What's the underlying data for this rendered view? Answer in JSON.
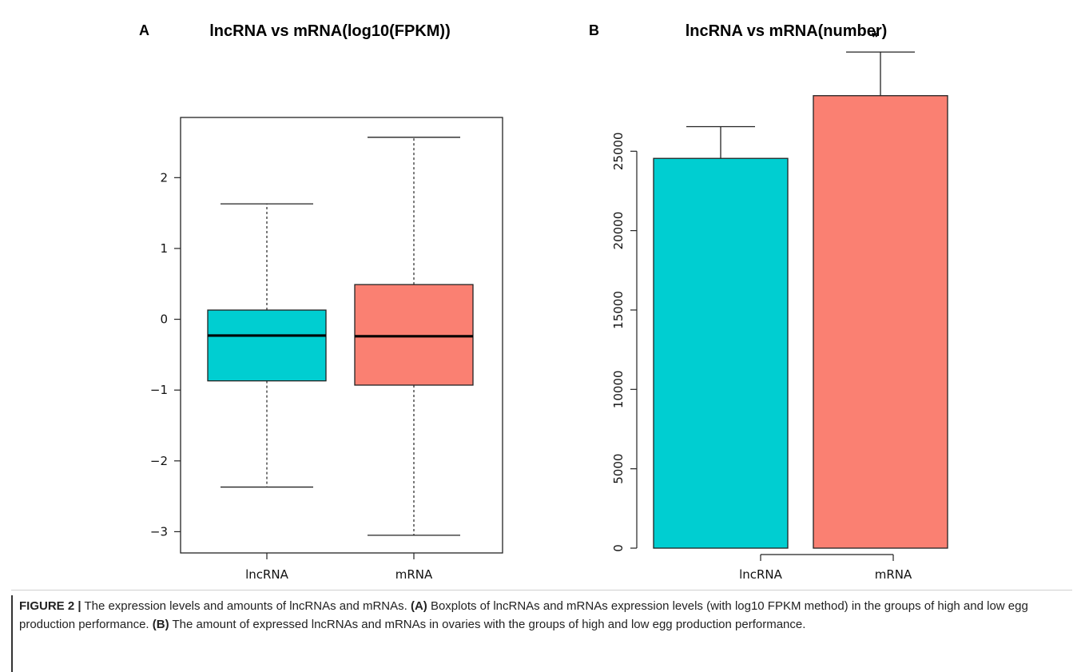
{
  "figure": {
    "caption": {
      "label": "FIGURE 2 |",
      "text": " The expression levels and amounts of lncRNAs and mRNAs. ",
      "a_label": "(A)",
      "a_text": " Boxplots of lncRNAs and mRNAs expression levels (with log10 FPKM method) in the groups of high and low egg production performance. ",
      "b_label": "(B)",
      "b_text": " The amount of expressed lncRNAs and mRNAs in ovaries with the groups of high and low egg production performance."
    }
  },
  "chart_data": [
    {
      "panel": "A",
      "type": "boxplot",
      "title": "lncRNA vs mRNA(log10(FPKM))",
      "xlabel": "",
      "ylabel": "",
      "ylim": [
        -3.3,
        2.85
      ],
      "yticks": [
        -3,
        -2,
        -1,
        0,
        1,
        2
      ],
      "ytick_labels": [
        "−3",
        "−2",
        "−1",
        "0",
        "1",
        "2"
      ],
      "categories": [
        "lncRNA",
        "mRNA"
      ],
      "boxes": [
        {
          "category": "lncRNA",
          "whisker_low": -2.37,
          "q1": -0.87,
          "median": -0.23,
          "q3": 0.13,
          "whisker_high": 1.63,
          "color": "#00CED1"
        },
        {
          "category": "mRNA",
          "whisker_low": -3.05,
          "q1": -0.93,
          "median": -0.24,
          "q3": 0.49,
          "whisker_high": 2.57,
          "color": "#FA8072"
        }
      ],
      "grid": false,
      "legend": "none"
    },
    {
      "panel": "B",
      "type": "bar",
      "title": "lncRNA vs mRNA(number)",
      "xlabel": "",
      "ylabel": "",
      "ylim": [
        0,
        30500
      ],
      "yticks": [
        0,
        5000,
        10000,
        15000,
        20000,
        25000
      ],
      "ytick_labels": [
        "0",
        "5000",
        "10000",
        "15000",
        "20000",
        "25000"
      ],
      "categories": [
        "lncRNA",
        "mRNA"
      ],
      "values": [
        24550,
        28500
      ],
      "error_upper": [
        26550,
        31250
      ],
      "colors": [
        "#00CED1",
        "#FA8072"
      ],
      "annotation": "*",
      "grid": false,
      "legend": "none"
    }
  ]
}
